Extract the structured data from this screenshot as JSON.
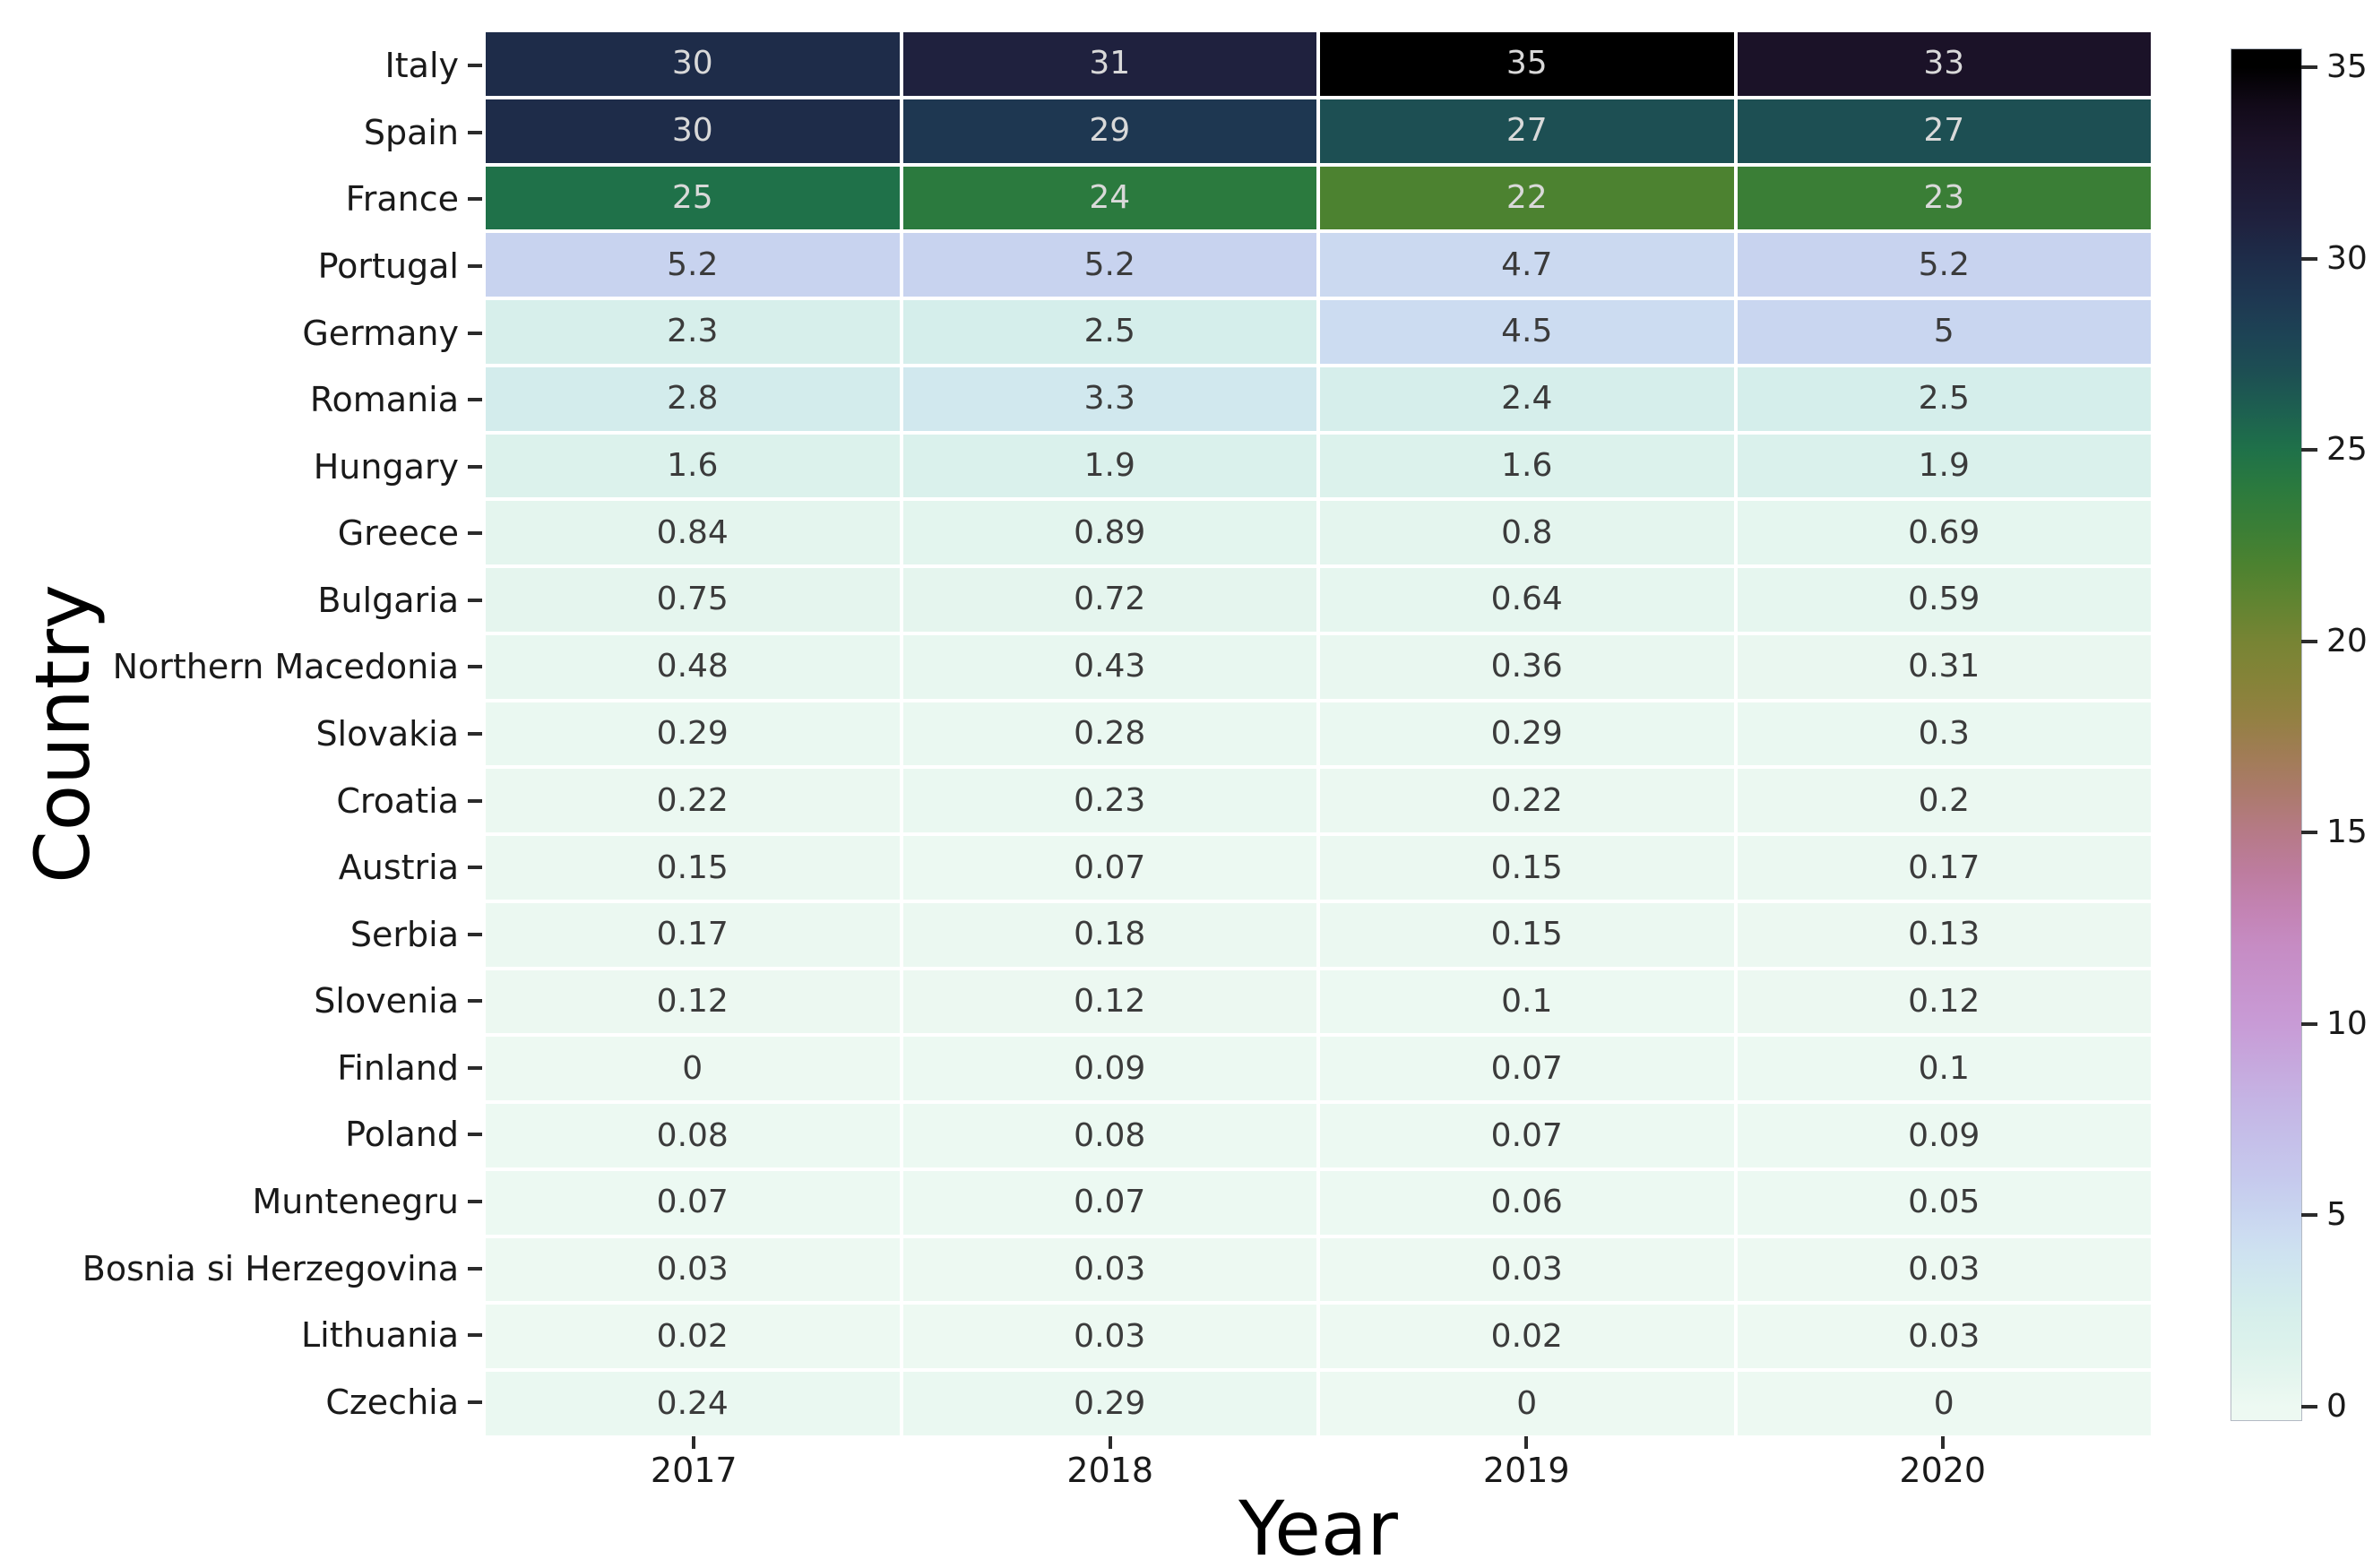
{
  "chart_data": {
    "type": "heatmap",
    "title": "",
    "xlabel": "Year",
    "ylabel": "Country",
    "x": [
      "2017",
      "2018",
      "2019",
      "2020"
    ],
    "rows": [
      {
        "country": "Italy",
        "values": [
          30,
          31,
          35,
          33
        ]
      },
      {
        "country": "Spain",
        "values": [
          30,
          29,
          27,
          27
        ]
      },
      {
        "country": "France",
        "values": [
          25,
          24,
          22,
          23
        ]
      },
      {
        "country": "Portugal",
        "values": [
          5.2,
          5.2,
          4.7,
          5.2
        ]
      },
      {
        "country": "Germany",
        "values": [
          2.3,
          2.5,
          4.5,
          5
        ]
      },
      {
        "country": "Romania",
        "values": [
          2.8,
          3.3,
          2.4,
          2.5
        ]
      },
      {
        "country": "Hungary",
        "values": [
          1.6,
          1.9,
          1.6,
          1.9
        ]
      },
      {
        "country": "Greece",
        "values": [
          0.84,
          0.89,
          0.8,
          0.69
        ]
      },
      {
        "country": "Bulgaria",
        "values": [
          0.75,
          0.72,
          0.64,
          0.59
        ]
      },
      {
        "country": "Northern Macedonia",
        "values": [
          0.48,
          0.43,
          0.36,
          0.31
        ]
      },
      {
        "country": "Slovakia",
        "values": [
          0.29,
          0.28,
          0.29,
          0.3
        ]
      },
      {
        "country": "Croatia",
        "values": [
          0.22,
          0.23,
          0.22,
          0.2
        ]
      },
      {
        "country": "Austria",
        "values": [
          0.15,
          0.07,
          0.15,
          0.17
        ]
      },
      {
        "country": "Serbia",
        "values": [
          0.17,
          0.18,
          0.15,
          0.13
        ]
      },
      {
        "country": "Slovenia",
        "values": [
          0.12,
          0.12,
          0.1,
          0.12
        ]
      },
      {
        "country": "Finland",
        "values": [
          0,
          0.09,
          0.07,
          0.1
        ]
      },
      {
        "country": "Poland",
        "values": [
          0.08,
          0.08,
          0.07,
          0.09
        ]
      },
      {
        "country": "Muntenegru",
        "values": [
          0.07,
          0.07,
          0.06,
          0.05
        ]
      },
      {
        "country": "Bosnia si Herzegovina",
        "values": [
          0.03,
          0.03,
          0.03,
          0.03
        ]
      },
      {
        "country": "Lithuania",
        "values": [
          0.02,
          0.03,
          0.02,
          0.03
        ]
      },
      {
        "country": "Czechia",
        "values": [
          0.24,
          0.29,
          0,
          0
        ]
      }
    ],
    "legend_position": "right",
    "grid": "white cell separators",
    "colorbar": {
      "min": 0,
      "max": 35,
      "ticks": [
        35,
        30,
        25,
        20,
        15,
        10,
        5,
        0
      ]
    },
    "colormap_stops": [
      {
        "v": 0,
        "c": "#edf9f2"
      },
      {
        "v": 0.8,
        "c": "#e4f5ee"
      },
      {
        "v": 1.6,
        "c": "#dcf2ec"
      },
      {
        "v": 2.3,
        "c": "#d7efeb"
      },
      {
        "v": 2.8,
        "c": "#d3ecec"
      },
      {
        "v": 3.3,
        "c": "#d1e8ee"
      },
      {
        "v": 4,
        "c": "#cee2f0"
      },
      {
        "v": 4.5,
        "c": "#ccdcf1"
      },
      {
        "v": 5.2,
        "c": "#c8d3ef"
      },
      {
        "v": 6,
        "c": "#c6c9ed"
      },
      {
        "v": 7,
        "c": "#c5bfe9"
      },
      {
        "v": 8,
        "c": "#c5b4e4"
      },
      {
        "v": 10,
        "c": "#c89bd6"
      },
      {
        "v": 12,
        "c": "#c68cc4"
      },
      {
        "v": 13,
        "c": "#c383b3"
      },
      {
        "v": 14,
        "c": "#bd7c9e"
      },
      {
        "v": 15,
        "c": "#b67a87"
      },
      {
        "v": 16,
        "c": "#ac7a6d"
      },
      {
        "v": 17,
        "c": "#a17c56"
      },
      {
        "v": 18,
        "c": "#938042"
      },
      {
        "v": 19,
        "c": "#858338"
      },
      {
        "v": 20,
        "c": "#778434"
      },
      {
        "v": 21,
        "c": "#618431"
      },
      {
        "v": 22,
        "c": "#4c8230"
      },
      {
        "v": 23,
        "c": "#3a7e36"
      },
      {
        "v": 24,
        "c": "#2b7a3e"
      },
      {
        "v": 25,
        "c": "#1f7149"
      },
      {
        "v": 26,
        "c": "#1d6050"
      },
      {
        "v": 27,
        "c": "#1d4f53"
      },
      {
        "v": 28,
        "c": "#1d4355"
      },
      {
        "v": 29,
        "c": "#1e3751"
      },
      {
        "v": 30,
        "c": "#1e2c49"
      },
      {
        "v": 31,
        "c": "#1f213e"
      },
      {
        "v": 32,
        "c": "#1d1933"
      },
      {
        "v": 33,
        "c": "#1b1228"
      },
      {
        "v": 34,
        "c": "#120a19"
      },
      {
        "v": 35,
        "c": "#000000"
      }
    ],
    "annotation_text_colors": {
      "on_dark": "#d9d9d9",
      "on_light": "#3b3b3b"
    },
    "background_color": "#ffffff"
  }
}
